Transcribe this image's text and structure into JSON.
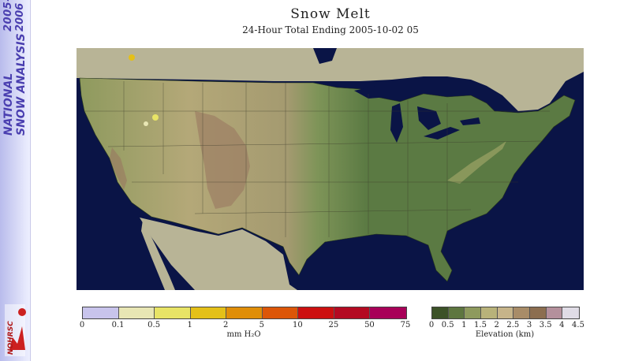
{
  "banner": {
    "year_top": "2005-",
    "year_bottom": "2006",
    "line1": "NATIONAL",
    "line2": "SNOW ANALYSIS",
    "logo_text": "NOHRSC"
  },
  "title": "Snow Melt",
  "subtitle": "24-Hour Total Ending 2005-10-02 05",
  "melt_legend": {
    "unit": "mm H₂O",
    "ticks": [
      "0",
      "0.1",
      "0.5",
      "1",
      "2",
      "5",
      "10",
      "25",
      "50",
      "75"
    ],
    "colors": [
      "#c8c4ec",
      "#e8e6b4",
      "#e8e466",
      "#e4c018",
      "#e08e08",
      "#dc5608",
      "#cc1010",
      "#b40a22",
      "#a80058"
    ]
  },
  "elevation_legend": {
    "unit": "Elevation (km)",
    "ticks": [
      "0",
      "0.5",
      "1",
      "1.5",
      "2",
      "2.5",
      "3",
      "3.5",
      "4",
      "4.5"
    ],
    "colors": [
      "#3c5228",
      "#5e7640",
      "#8e9a5e",
      "#b8b27a",
      "#c6b48a",
      "#a88c68",
      "#8c6e50",
      "#b4909c",
      "#e0dce6"
    ]
  },
  "colors": {
    "ocean": "#0a1446",
    "lowland": "#5b7a43",
    "plains": "#8e9a5e",
    "highlands": "#b4a878",
    "mountains": "#9a7860",
    "outside_land": "#b8b496"
  }
}
